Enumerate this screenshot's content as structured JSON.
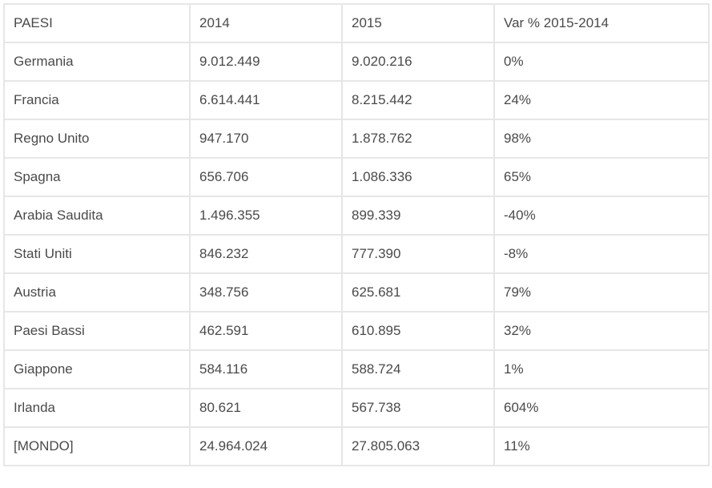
{
  "table": {
    "headers": [
      "PAESI",
      "2014",
      "2015",
      "Var % 2015-2014"
    ],
    "rows": [
      [
        "Germania",
        "9.012.449",
        "9.020.216",
        "0%"
      ],
      [
        "Francia",
        "6.614.441",
        "8.215.442",
        "24%"
      ],
      [
        "Regno Unito",
        "947.170",
        "1.878.762",
        "98%"
      ],
      [
        "Spagna",
        "656.706",
        "1.086.336",
        "65%"
      ],
      [
        "Arabia Saudita",
        "1.496.355",
        "899.339",
        "-40%"
      ],
      [
        "Stati Uniti",
        "846.232",
        "777.390",
        "-8%"
      ],
      [
        "Austria",
        "348.756",
        "625.681",
        "79%"
      ],
      [
        "Paesi Bassi",
        "462.591",
        "610.895",
        "32%"
      ],
      [
        "Giappone",
        "584.116",
        "588.724",
        "1%"
      ],
      [
        "Irlanda",
        "80.621",
        "567.738",
        "604%"
      ],
      [
        "[MONDO]",
        "24.964.024",
        "27.805.063",
        "11%"
      ]
    ]
  }
}
